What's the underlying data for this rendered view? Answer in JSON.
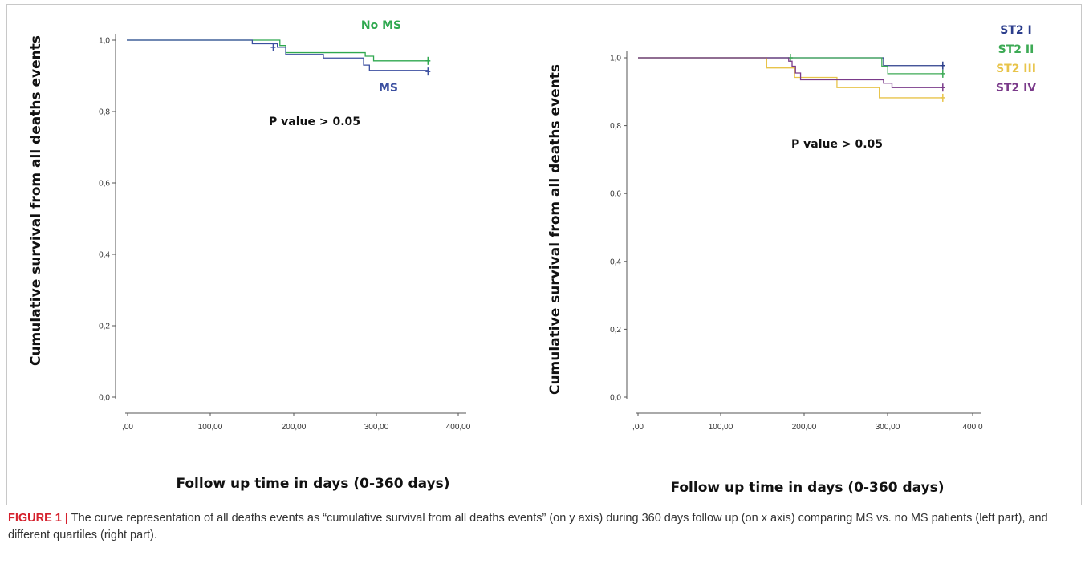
{
  "chart_data": [
    {
      "type": "line",
      "title": "",
      "xlabel": "Follow up time in days (0-360 days)",
      "ylabel": "Cumulative survival from all deaths events",
      "xlim": [
        0,
        400
      ],
      "ylim": [
        0,
        1
      ],
      "x_ticks": [
        ",00",
        "100,00",
        "200,00",
        "300,00",
        "400,00"
      ],
      "y_ticks": [
        "0,0",
        "0,2",
        "0,4",
        "0,6",
        "0,8",
        "1,0"
      ],
      "annotation": "P value > 0.05",
      "legend_position": "top-right",
      "series": [
        {
          "name": "No MS",
          "color": "#2fa84f",
          "steps": [
            [
              0,
              1.0
            ],
            [
              183,
              0.985
            ],
            [
              190,
              0.965
            ],
            [
              285,
              0.955
            ],
            [
              295,
              0.942
            ],
            [
              360,
              0.942
            ]
          ],
          "censored": [
            [
              360,
              0.942
            ]
          ]
        },
        {
          "name": "MS",
          "color": "#3b4fa0",
          "steps": [
            [
              0,
              1.0
            ],
            [
              150,
              0.99
            ],
            [
              180,
              0.98
            ],
            [
              190,
              0.96
            ],
            [
              235,
              0.95
            ],
            [
              283,
              0.93
            ],
            [
              290,
              0.915
            ],
            [
              360,
              0.912
            ]
          ],
          "censored": [
            [
              175,
              0.98
            ],
            [
              360,
              0.912
            ]
          ]
        }
      ]
    },
    {
      "type": "line",
      "title": "",
      "xlabel": "Follow up time in days (0-360 days)",
      "ylabel": "Cumulative survival from all deaths events",
      "xlim": [
        0,
        400
      ],
      "ylim": [
        0,
        1
      ],
      "x_ticks": [
        ",00",
        "100,00",
        "200,00",
        "300,00",
        "400,0"
      ],
      "y_ticks": [
        "0,0",
        "0,2",
        "0,4",
        "0,6",
        "0,8",
        "1,0"
      ],
      "annotation": "P value > 0.05",
      "legend_position": "top-right",
      "series": [
        {
          "name": "ST2 I",
          "color": "#2c3e8c",
          "steps": [
            [
              0,
              1.0
            ],
            [
              290,
              0.977
            ],
            [
              360,
              0.977
            ]
          ],
          "censored": [
            [
              360,
              0.977
            ]
          ]
        },
        {
          "name": "ST2 II",
          "color": "#3daa55",
          "steps": [
            [
              0,
              1.0
            ],
            [
              288,
              0.975
            ],
            [
              295,
              0.953
            ],
            [
              360,
              0.953
            ]
          ],
          "censored": [
            [
              180,
              1.0
            ],
            [
              360,
              0.953
            ]
          ]
        },
        {
          "name": "ST2 III",
          "color": "#e8c44a",
          "steps": [
            [
              0,
              1.0
            ],
            [
              152,
              0.97
            ],
            [
              185,
              0.942
            ],
            [
              235,
              0.912
            ],
            [
              285,
              0.882
            ],
            [
              360,
              0.882
            ]
          ],
          "censored": [
            [
              360,
              0.882
            ]
          ]
        },
        {
          "name": "ST2 IV",
          "color": "#7a3a8a",
          "steps": [
            [
              0,
              1.0
            ],
            [
              178,
              0.99
            ],
            [
              182,
              0.975
            ],
            [
              186,
              0.955
            ],
            [
              192,
              0.935
            ],
            [
              290,
              0.925
            ],
            [
              300,
              0.912
            ],
            [
              360,
              0.912
            ]
          ],
          "censored": [
            [
              360,
              0.912
            ]
          ]
        }
      ]
    }
  ],
  "caption": {
    "lead": "FIGURE 1 |",
    "text": " The curve representation of all deaths events as “cumulative survival from all deaths events” (on y axis) during 360 days follow up (on x axis) comparing MS vs. no MS patients (left part), and different quartiles (right part)."
  }
}
